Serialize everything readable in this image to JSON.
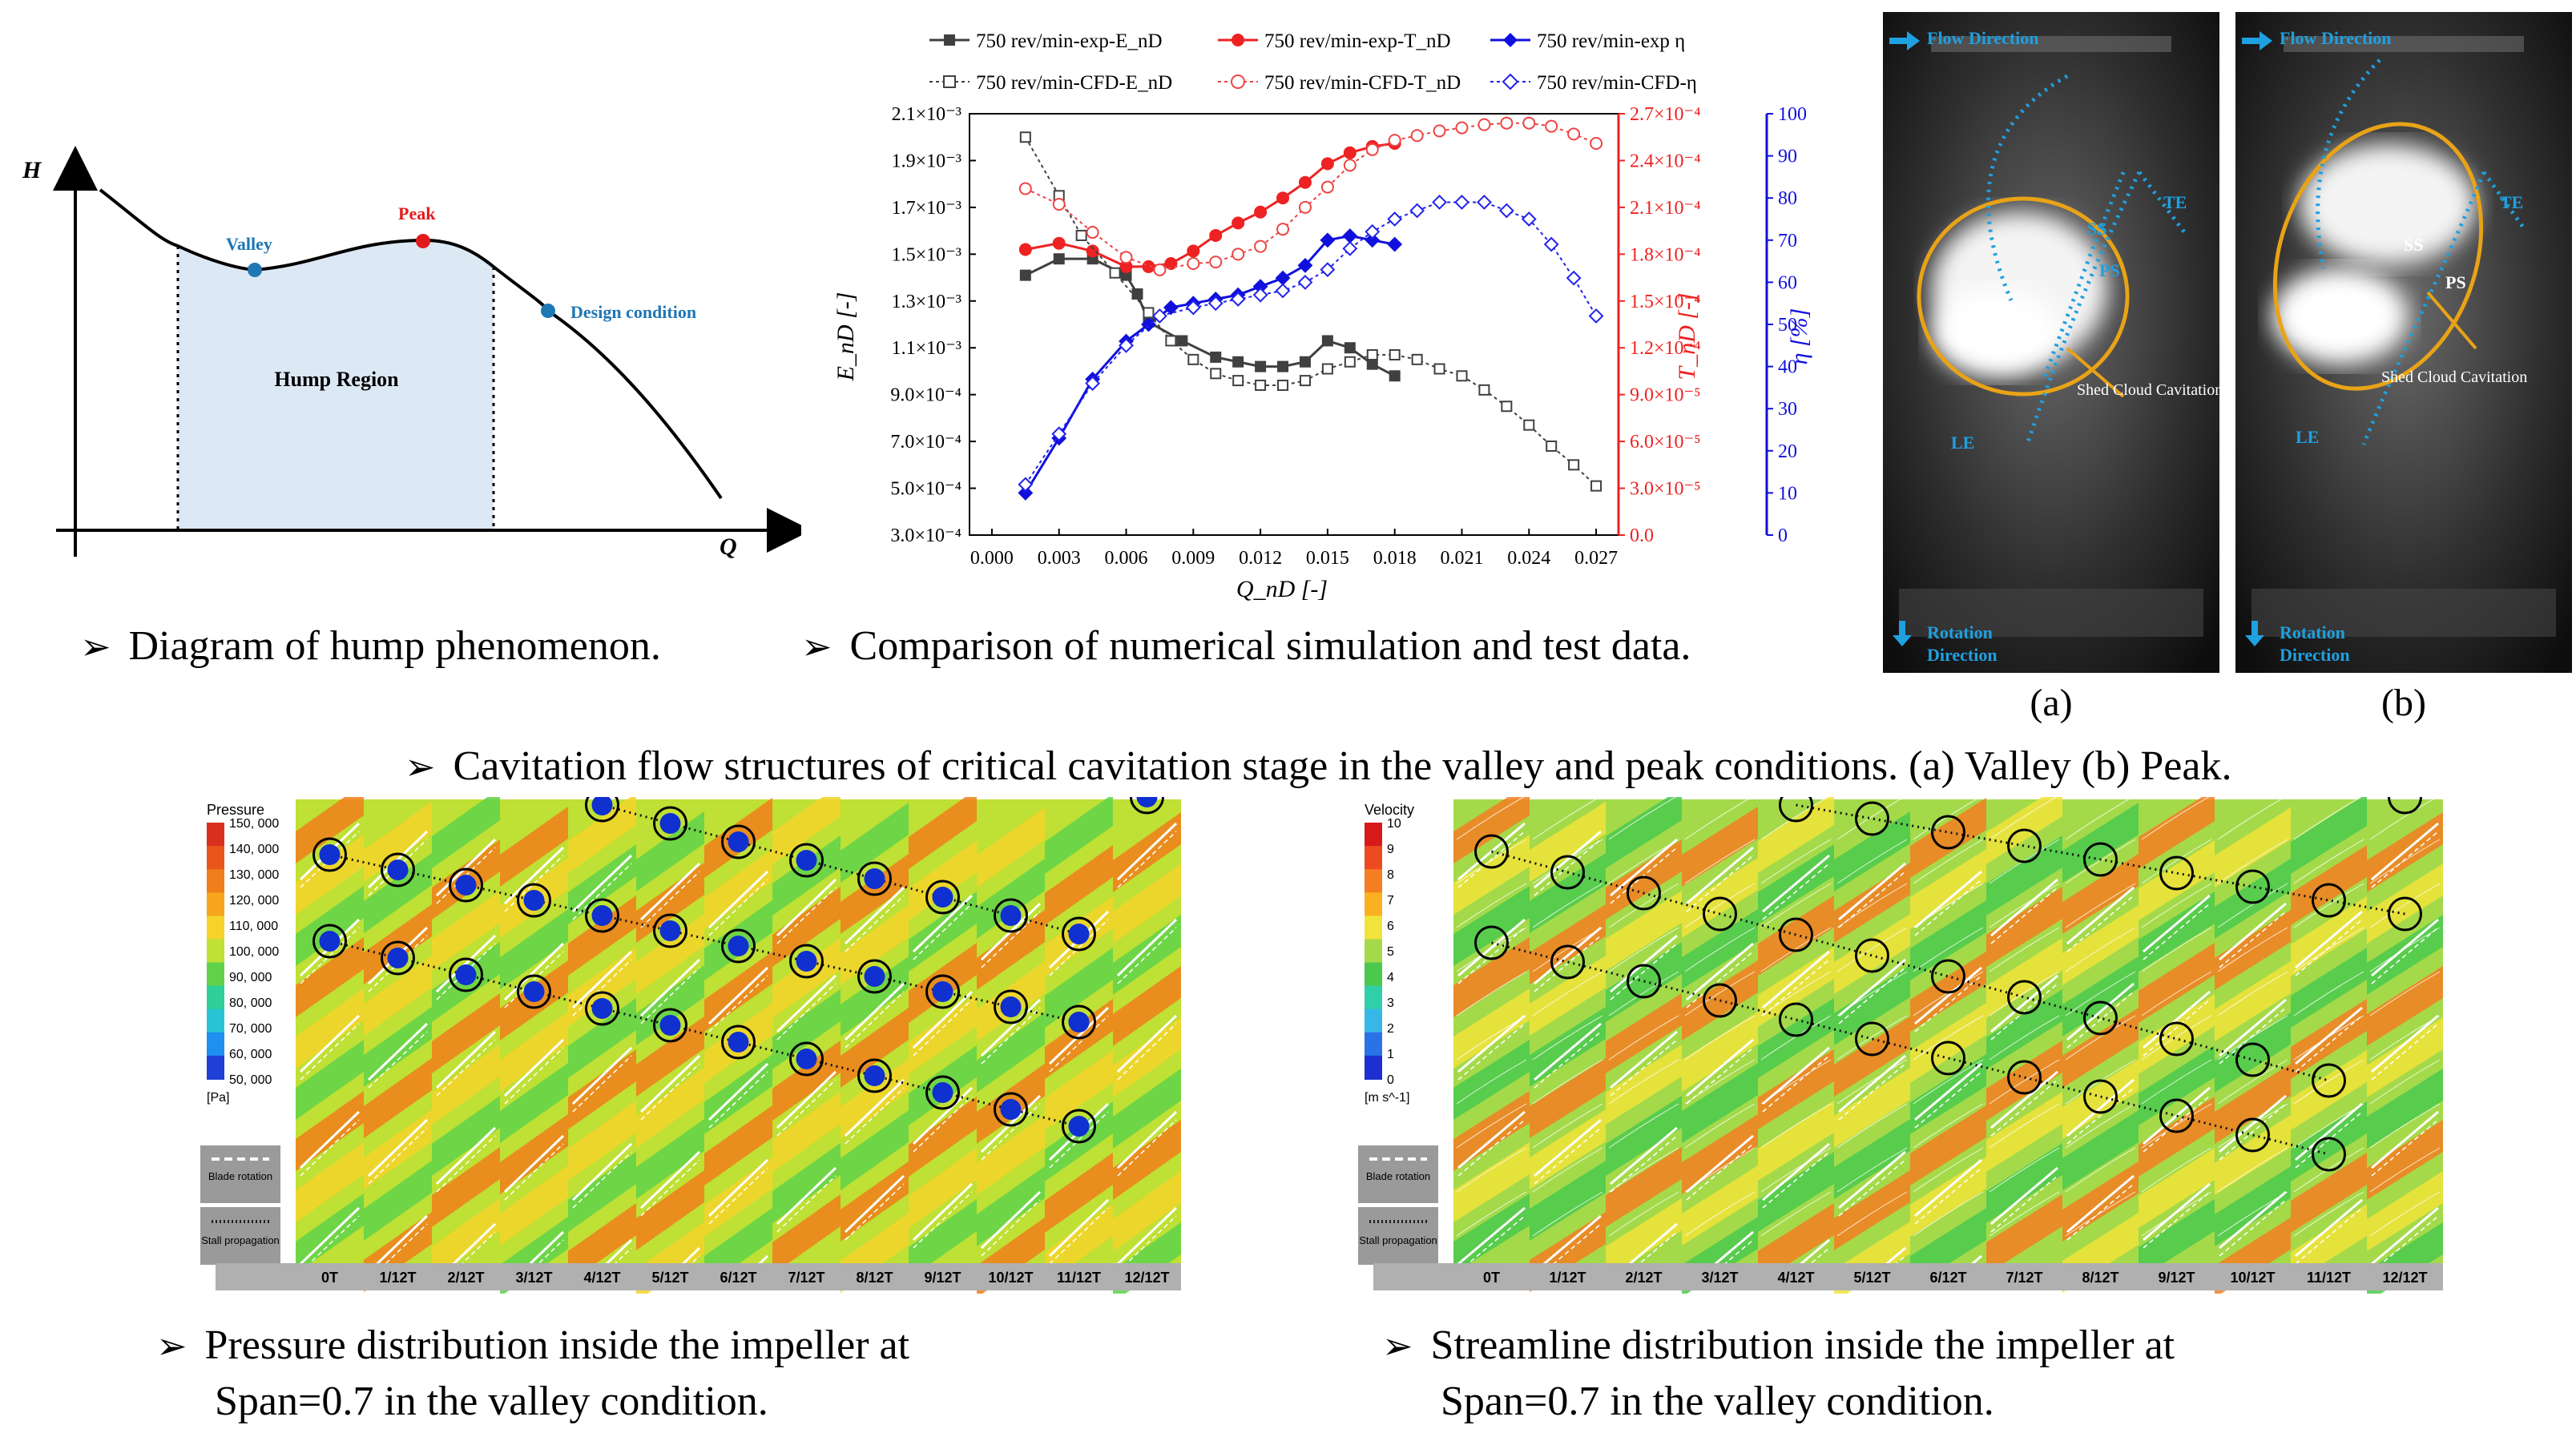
{
  "hump_diagram": {
    "axis_h": "H",
    "axis_q": "Q",
    "valley": "Valley",
    "peak": "Peak",
    "design": "Design condition",
    "region": "Hump Region",
    "colors": {
      "valley": "#1f77b4",
      "peak": "#e31a1c",
      "design": "#1f77b4",
      "region": "#dce9f5"
    }
  },
  "captions": {
    "c1": "Diagram of hump phenomenon.",
    "c2": "Comparison of numerical simulation and test data.",
    "c3": "Cavitation flow structures of critical cavitation stage in the valley and peak conditions. (a) Valley (b) Peak.",
    "c4_l1": "Pressure distribution inside the impeller at",
    "c4_l2": "Span=0.7 in the valley condition.",
    "c5_l1": "Streamline distribution inside the impeller at",
    "c5_l2": "Span=0.7 in the valley condition."
  },
  "chart_data": {
    "type": "line",
    "xlabel": "Q_nD [-]",
    "ylabel_left": "E_nD [-]",
    "ylabel_right1": "T_nD [-]",
    "ylabel_right2": "η [%]",
    "xlim": [
      -0.001,
      0.028
    ],
    "x_ticks": [
      "0.000",
      "0.003",
      "0.006",
      "0.009",
      "0.012",
      "0.015",
      "0.018",
      "0.021",
      "0.024",
      "0.027"
    ],
    "y_left_ticks": [
      "2.1×10⁻³",
      "1.9×10⁻³",
      "1.7×10⁻³",
      "1.5×10⁻³",
      "1.3×10⁻³",
      "1.1×10⁻³",
      "9.0×10⁻⁴",
      "7.0×10⁻⁴",
      "5.0×10⁻⁴",
      "3.0×10⁻⁴"
    ],
    "y_right1_ticks": [
      "2.7×10⁻⁴",
      "2.4×10⁻⁴",
      "2.1×10⁻⁴",
      "1.8×10⁻⁴",
      "1.5×10⁻⁴",
      "1.2×10⁻⁴",
      "9.0×10⁻⁵",
      "6.0×10⁻⁵",
      "3.0×10⁻⁵",
      "0.0"
    ],
    "y_right2_ticks": [
      "100",
      "90",
      "80",
      "70",
      "60",
      "50",
      "40",
      "30",
      "20",
      "10",
      "0"
    ],
    "ylim_left": [
      0.0003,
      0.0021
    ],
    "ylim_right1": [
      0,
      0.00027
    ],
    "ylim_right2": [
      0,
      100
    ],
    "series": [
      {
        "name": "750 rev/min-exp-E_nD",
        "axis": "left",
        "color": "#404040",
        "marker": "square-filled",
        "dash": "",
        "x": [
          0.0015,
          0.003,
          0.0045,
          0.006,
          0.0065,
          0.007,
          0.0085,
          0.01,
          0.011,
          0.012,
          0.013,
          0.014,
          0.015,
          0.016,
          0.017,
          0.018
        ],
        "y": [
          0.00141,
          0.00148,
          0.00148,
          0.00141,
          0.00133,
          0.00121,
          0.00113,
          0.00106,
          0.00104,
          0.00102,
          0.00102,
          0.00104,
          0.00113,
          0.0011,
          0.00103,
          0.00098
        ]
      },
      {
        "name": "750 rev/min-exp-T_nD",
        "axis": "right1",
        "color": "#ee2222",
        "marker": "circle-filled",
        "dash": "",
        "x": [
          0.0015,
          0.003,
          0.0045,
          0.006,
          0.007,
          0.008,
          0.009,
          0.01,
          0.011,
          0.012,
          0.013,
          0.014,
          0.015,
          0.016,
          0.017,
          0.018
        ],
        "y": [
          0.000183,
          0.000187,
          0.000182,
          0.000172,
          0.000172,
          0.000174,
          0.000182,
          0.000192,
          0.0002,
          0.000207,
          0.000216,
          0.000226,
          0.000238,
          0.000245,
          0.000249,
          0.000251
        ]
      },
      {
        "name": "750 rev/min-exp η",
        "axis": "right2",
        "color": "#1010dd",
        "marker": "diamond-filled",
        "dash": "",
        "x": [
          0.0015,
          0.003,
          0.0045,
          0.006,
          0.007,
          0.008,
          0.009,
          0.01,
          0.011,
          0.012,
          0.013,
          0.014,
          0.015,
          0.016,
          0.017,
          0.018
        ],
        "y": [
          10,
          23,
          37,
          46,
          50,
          54,
          55,
          56,
          57,
          59,
          61,
          64,
          70,
          71,
          70,
          69
        ]
      },
      {
        "name": "750 rev/min-CFD-E_nD",
        "axis": "left",
        "color": "#404040",
        "marker": "square-open",
        "dash": "6,6",
        "x": [
          0.0015,
          0.003,
          0.004,
          0.0055,
          0.007,
          0.008,
          0.009,
          0.01,
          0.011,
          0.012,
          0.013,
          0.014,
          0.015,
          0.016,
          0.017,
          0.018,
          0.019,
          0.02,
          0.021,
          0.022,
          0.023,
          0.024,
          0.025,
          0.026,
          0.027
        ],
        "y": [
          0.002,
          0.00175,
          0.00158,
          0.00142,
          0.00125,
          0.00113,
          0.00105,
          0.00099,
          0.00096,
          0.00094,
          0.00094,
          0.00096,
          0.00101,
          0.00104,
          0.00107,
          0.00107,
          0.00105,
          0.00101,
          0.00098,
          0.00092,
          0.00085,
          0.00077,
          0.00068,
          0.0006,
          0.00051
        ]
      },
      {
        "name": "750 rev/min-CFD-T_nD",
        "axis": "right1",
        "color": "#ee4444",
        "marker": "circle-open",
        "dash": "6,6",
        "x": [
          0.0015,
          0.003,
          0.0045,
          0.006,
          0.0075,
          0.009,
          0.01,
          0.011,
          0.012,
          0.013,
          0.014,
          0.015,
          0.016,
          0.017,
          0.018,
          0.019,
          0.02,
          0.021,
          0.022,
          0.023,
          0.024,
          0.025,
          0.026,
          0.027
        ],
        "y": [
          0.000222,
          0.000212,
          0.000194,
          0.000178,
          0.00017,
          0.000174,
          0.000175,
          0.00018,
          0.000185,
          0.000196,
          0.00021,
          0.000223,
          0.000237,
          0.000247,
          0.000253,
          0.000256,
          0.000259,
          0.000261,
          0.000263,
          0.000264,
          0.000264,
          0.000262,
          0.000257,
          0.000251
        ]
      },
      {
        "name": "750 rev/min-CFD-η",
        "axis": "right2",
        "color": "#2222ee",
        "marker": "diamond-open",
        "dash": "6,6",
        "x": [
          0.0015,
          0.003,
          0.0045,
          0.006,
          0.0075,
          0.009,
          0.01,
          0.011,
          0.012,
          0.013,
          0.014,
          0.015,
          0.016,
          0.017,
          0.018,
          0.019,
          0.02,
          0.021,
          0.022,
          0.023,
          0.024,
          0.025,
          0.026,
          0.027
        ],
        "y": [
          12,
          24,
          36,
          45,
          52,
          54,
          55,
          56,
          57,
          58,
          60,
          63,
          68,
          72,
          75,
          77,
          79,
          79,
          79,
          77,
          75,
          69,
          61,
          52
        ]
      }
    ]
  },
  "photos": {
    "flow": "Flow Direction",
    "rotation1": "Rotation",
    "rotation2": "Direction",
    "ss": "SS",
    "ps": "PS",
    "te": "TE",
    "le": "LE",
    "shed": "Shed Cloud Cavitation",
    "label_a": "(a)",
    "label_b": "(b)"
  },
  "pressure_panel": {
    "title": "Pressure",
    "unit": "[Pa]",
    "levels": [
      "150, 000",
      "140, 000",
      "130, 000",
      "120, 000",
      "110, 000",
      "100, 000",
      "90, 000",
      "80, 000",
      "70, 000",
      "60, 000",
      "50, 000"
    ],
    "legend1": "Blade rotation",
    "legend2": "Stall propagation",
    "times": [
      "0T",
      "1/12T",
      "2/12T",
      "3/12T",
      "4/12T",
      "5/12T",
      "6/12T",
      "7/12T",
      "8/12T",
      "9/12T",
      "10/12T",
      "11/12T",
      "12/12T"
    ]
  },
  "velocity_panel": {
    "title": "Velocity",
    "unit": "[m s^-1]",
    "levels": [
      "10",
      "9",
      "8",
      "7",
      "6",
      "5",
      "4",
      "3",
      "2",
      "1",
      "0"
    ],
    "legend1": "Blade rotation",
    "legend2": "Stall propagation",
    "times": [
      "0T",
      "1/12T",
      "2/12T",
      "3/12T",
      "4/12T",
      "5/12T",
      "6/12T",
      "7/12T",
      "8/12T",
      "9/12T",
      "10/12T",
      "11/12T",
      "12/12T"
    ]
  }
}
